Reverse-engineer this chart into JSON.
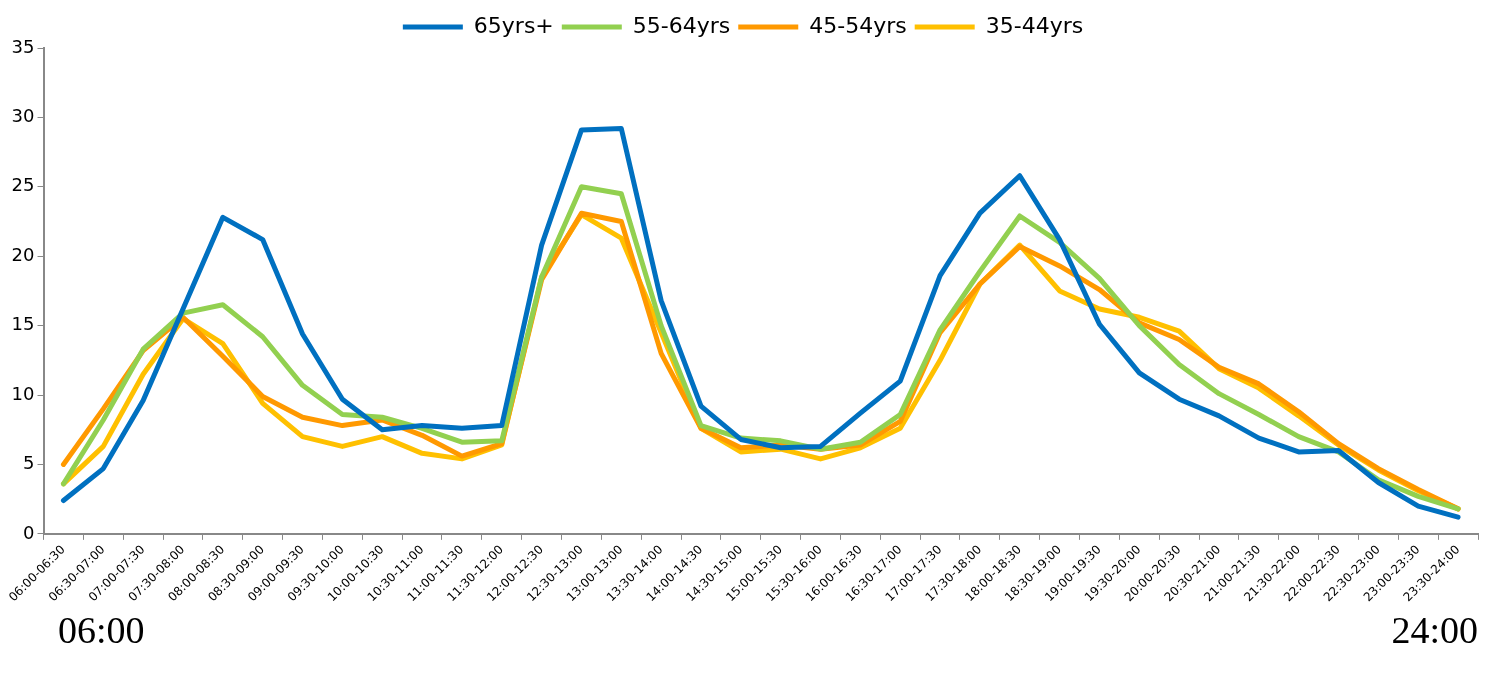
{
  "chart_data": {
    "type": "line",
    "categories": [
      "06:00-06:30",
      "06:30-07:00",
      "07:00-07:30",
      "07:30-08:00",
      "08:00-08:30",
      "08:30-09:00",
      "09:00-09:30",
      "09:30-10:00",
      "10:00-10:30",
      "10:30-11:00",
      "11:00-11:30",
      "11:30-12:00",
      "12:00-12:30",
      "12:30-13:00",
      "13:00-13:00",
      "13:30-14:00",
      "14:00-14:30",
      "14:30-15:00",
      "15:00-15:30",
      "15:30-16:00",
      "16:00-16:30",
      "16:30-17:00",
      "17:00-17:30",
      "17:30-18:00",
      "18:00-18:30",
      "18:30-19:00",
      "19:00-19:30",
      "19:30-20:00",
      "20:00-20:30",
      "20:30-21:00",
      "21:00-21:30",
      "21:30-22:00",
      "22:00-22:30",
      "22:30-23:00",
      "23:00-23:30",
      "23:30-24:00"
    ],
    "series": [
      {
        "name": "35-44yrs",
        "color": "#ffc000",
        "values": [
          3.6,
          6.3,
          11.5,
          15.5,
          13.7,
          9.4,
          7.0,
          6.3,
          7.0,
          5.8,
          5.4,
          6.4,
          18.5,
          23.0,
          21.3,
          14.5,
          7.6,
          5.9,
          6.1,
          5.4,
          6.2,
          7.6,
          12.5,
          18.0,
          20.8,
          17.5,
          16.2,
          15.6,
          14.6,
          11.9,
          10.5,
          8.5,
          6.4,
          4.6,
          3.1,
          1.8
        ]
      },
      {
        "name": "45-54yrs",
        "color": "#ff9900",
        "values": [
          5.0,
          9.0,
          13.2,
          15.6,
          12.8,
          9.9,
          8.4,
          7.8,
          8.2,
          7.1,
          5.6,
          6.5,
          18.3,
          23.1,
          22.5,
          13.0,
          7.6,
          6.2,
          6.4,
          6.1,
          6.4,
          8.1,
          14.5,
          18.0,
          20.7,
          19.3,
          17.6,
          15.2,
          14.0,
          12.0,
          10.8,
          8.8,
          6.5,
          4.7,
          3.2,
          1.8
        ]
      },
      {
        "name": "55-64yrs",
        "color": "#92d050",
        "values": [
          3.6,
          8.2,
          13.3,
          15.9,
          16.5,
          14.2,
          10.7,
          8.6,
          8.4,
          7.6,
          6.6,
          6.7,
          18.5,
          25.0,
          24.5,
          15.0,
          7.8,
          6.9,
          6.7,
          6.1,
          6.6,
          8.6,
          14.7,
          18.9,
          22.9,
          21.0,
          18.4,
          15.0,
          12.2,
          10.1,
          8.6,
          7.0,
          5.9,
          3.9,
          2.7,
          1.8
        ]
      },
      {
        "name": "65yrs+",
        "color": "#0070c0",
        "values": [
          2.4,
          4.7,
          9.6,
          16.2,
          22.8,
          21.2,
          14.4,
          9.7,
          7.5,
          7.8,
          7.6,
          7.8,
          20.8,
          29.1,
          29.2,
          16.8,
          9.2,
          6.8,
          6.2,
          6.3,
          8.7,
          11.0,
          18.6,
          23.1,
          25.8,
          21.2,
          15.1,
          11.6,
          9.7,
          8.5,
          6.9,
          5.9,
          6.0,
          3.7,
          2.0,
          1.2
        ]
      }
    ],
    "ylim": [
      0,
      35
    ],
    "yticks": [
      0,
      5,
      10,
      15,
      20,
      25,
      30,
      35
    ],
    "legend": "top",
    "marker": "none",
    "line_style": "solid",
    "annotations": [
      "06:00",
      "24:00"
    ]
  }
}
